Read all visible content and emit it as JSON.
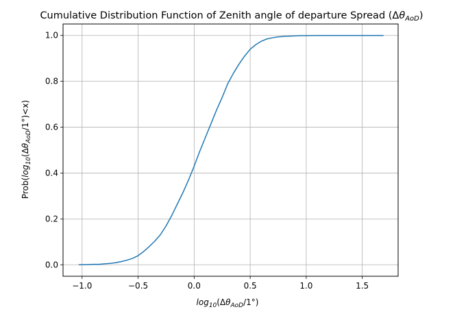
{
  "chart_data": {
    "type": "line",
    "title": {
      "prefix": "Cumulative Distribution Function of Zenith angle of departure Spread (",
      "delta": "Δ",
      "theta": "θ",
      "sub": "AoD",
      "suffix": ")"
    },
    "xlabel": {
      "log": "log",
      "log_sub": "10",
      "paren_open": "(",
      "delta": "Δ",
      "theta": "θ",
      "sub": "AoD",
      "tail": "/1°)"
    },
    "ylabel": {
      "prob": "Prob(",
      "log": "log",
      "log_sub": "10",
      "paren_open": "(",
      "delta": "Δ",
      "theta": "θ",
      "sub": "AoD",
      "tail": "/1°)<x)"
    },
    "xlim": [
      -1.17,
      1.82
    ],
    "ylim": [
      -0.05,
      1.05
    ],
    "xticks": [
      -1.0,
      -0.5,
      0.0,
      0.5,
      1.0,
      1.5
    ],
    "xtick_labels": [
      "−1.0",
      "−0.5",
      "0.0",
      "0.5",
      "1.0",
      "1.5"
    ],
    "yticks": [
      0.0,
      0.2,
      0.4,
      0.6,
      0.8,
      1.0
    ],
    "ytick_labels": [
      "0.0",
      "0.2",
      "0.4",
      "0.6",
      "0.8",
      "1.0"
    ],
    "grid": true,
    "line_color": "#1f77b4",
    "series": [
      {
        "x": [
          -1.03,
          -0.95,
          -0.9,
          -0.85,
          -0.8,
          -0.75,
          -0.7,
          -0.65,
          -0.6,
          -0.55,
          -0.5,
          -0.45,
          -0.4,
          -0.35,
          -0.3,
          -0.25,
          -0.2,
          -0.15,
          -0.1,
          -0.05,
          0.0,
          0.05,
          0.1,
          0.15,
          0.2,
          0.25,
          0.3,
          0.35,
          0.4,
          0.45,
          0.5,
          0.55,
          0.6,
          0.65,
          0.7,
          0.75,
          0.8,
          0.85,
          0.9,
          0.95,
          1.0,
          1.1,
          1.2,
          1.3,
          1.4,
          1.5,
          1.6,
          1.69
        ],
        "y": [
          0.0,
          0.001,
          0.002,
          0.002,
          0.004,
          0.006,
          0.009,
          0.014,
          0.02,
          0.028,
          0.04,
          0.058,
          0.08,
          0.104,
          0.132,
          0.17,
          0.215,
          0.265,
          0.315,
          0.37,
          0.43,
          0.495,
          0.555,
          0.615,
          0.675,
          0.73,
          0.79,
          0.835,
          0.875,
          0.91,
          0.94,
          0.96,
          0.975,
          0.985,
          0.99,
          0.994,
          0.996,
          0.997,
          0.998,
          0.999,
          0.999,
          1.0,
          1.0,
          1.0,
          1.0,
          1.0,
          1.0,
          1.0
        ]
      }
    ]
  }
}
